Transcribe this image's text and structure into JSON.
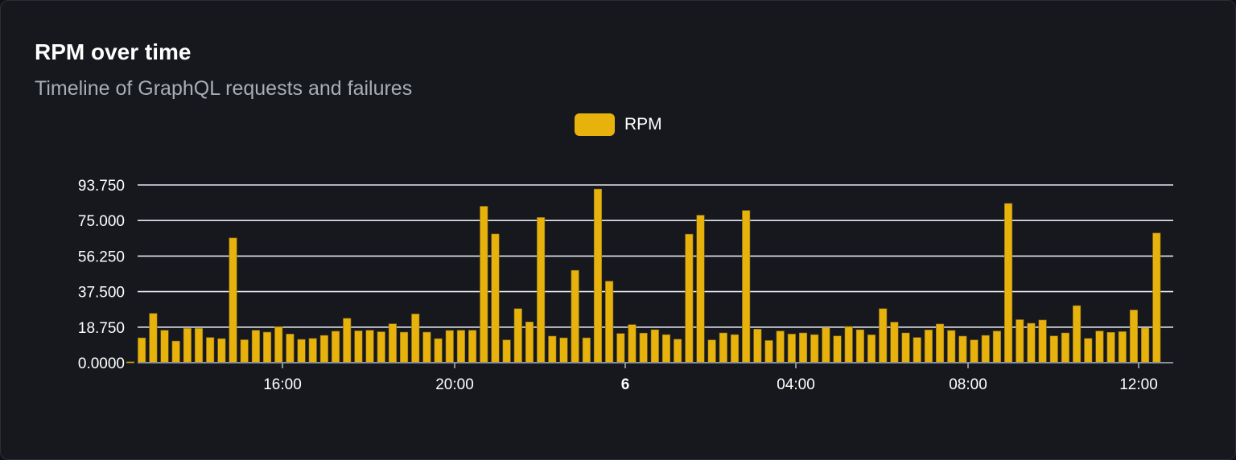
{
  "header": {
    "title": "RPM over time",
    "subtitle": "Timeline of GraphQL requests and failures"
  },
  "chart_data": {
    "type": "bar",
    "legend": {
      "position": "top",
      "entries": [
        "RPM"
      ]
    },
    "series": [
      {
        "name": "RPM",
        "color": "#e8b20c",
        "values": [
          0.5,
          13.1,
          26.0,
          17.1,
          11.4,
          18.1,
          18.1,
          13.3,
          12.7,
          65.8,
          12.1,
          17.1,
          16.1,
          19.0,
          15.1,
          12.3,
          12.8,
          14.4,
          16.6,
          23.4,
          16.8,
          17.1,
          16.3,
          20.5,
          16.1,
          25.7,
          16.1,
          12.7,
          17.0,
          17.1,
          17.1,
          82.5,
          67.9,
          12.0,
          28.5,
          21.5,
          76.6,
          14.0,
          13.1,
          48.7,
          13.1,
          91.6,
          43.0,
          15.4,
          20.1,
          15.6,
          17.4,
          14.8,
          12.4,
          67.8,
          77.8,
          12.0,
          15.7,
          14.8,
          80.3,
          17.7,
          11.7,
          16.7,
          15.1,
          15.7,
          14.8,
          18.4,
          14.1,
          19.1,
          17.4,
          14.7,
          28.5,
          21.4,
          15.7,
          13.3,
          17.3,
          20.4,
          17.0,
          14.0,
          12.0,
          14.4,
          16.7,
          84.0,
          22.7,
          20.8,
          22.5,
          14.1,
          15.7,
          30.1,
          12.8,
          16.7,
          16.0,
          16.4,
          27.8,
          18.3,
          68.4
        ]
      }
    ],
    "ylim": [
      0,
      93.75
    ],
    "yticks": [
      "0.0000",
      "18.750",
      "37.500",
      "56.250",
      "75.000",
      "93.750"
    ],
    "xticks": [
      {
        "label": "16:00",
        "bold": false
      },
      {
        "label": "20:00",
        "bold": false
      },
      {
        "label": "6",
        "bold": true
      },
      {
        "label": "04:00",
        "bold": false
      },
      {
        "label": "08:00",
        "bold": false
      },
      {
        "label": "12:00",
        "bold": false
      }
    ],
    "grid": true,
    "gridColor": "#e3e7f0"
  }
}
